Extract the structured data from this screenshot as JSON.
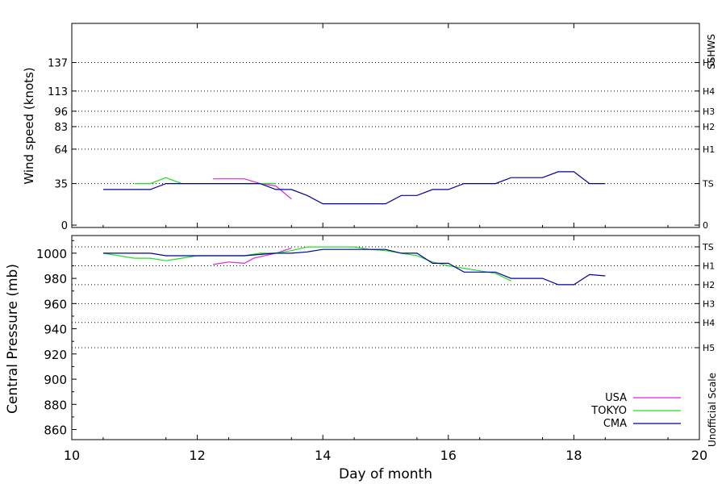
{
  "chart_data": [
    {
      "type": "line",
      "xlabel": "",
      "ylabel": "Wind speed (knots)",
      "right_label": "SSHWS",
      "xlim": [
        10,
        20
      ],
      "ylim": [
        -2,
        170
      ],
      "y_ticks": [
        {
          "value": 0,
          "label": "0",
          "right": "0"
        },
        {
          "value": 35,
          "label": "35",
          "right": "TS"
        },
        {
          "value": 64,
          "label": "64",
          "right": "H1"
        },
        {
          "value": 83,
          "label": "83",
          "right": "H2"
        },
        {
          "value": 96,
          "label": "96",
          "right": "H3"
        },
        {
          "value": 113,
          "label": "113",
          "right": "H4"
        },
        {
          "value": 137,
          "label": "137",
          "right": "H5"
        }
      ],
      "grid_lines": [
        35,
        64,
        83,
        96,
        113,
        137
      ],
      "series": [
        {
          "name": "USA",
          "color": "#e020e0",
          "x": [
            12.25,
            12.75,
            13.0,
            13.25,
            13.5
          ],
          "y": [
            39,
            39,
            35,
            33,
            22
          ]
        },
        {
          "name": "TOKYO",
          "color": "#20e020",
          "x": [
            11.0,
            11.25,
            11.5,
            11.75,
            12.0,
            12.5,
            13.0,
            13.25
          ],
          "y": [
            35,
            35,
            40,
            35,
            35,
            35,
            35,
            35
          ]
        },
        {
          "name": "CMA",
          "color": "#0000a0",
          "x": [
            10.5,
            11.25,
            11.5,
            12.0,
            13.0,
            13.25,
            13.5,
            13.75,
            14.0,
            14.5,
            15.0,
            15.25,
            15.5,
            15.75,
            16.0,
            16.25,
            16.5,
            16.75,
            17.0,
            17.25,
            17.5,
            17.75,
            18.0,
            18.25,
            18.5
          ],
          "y": [
            30,
            30,
            35,
            35,
            35,
            30,
            30,
            25,
            18,
            18,
            18,
            25,
            25,
            30,
            30,
            35,
            35,
            35,
            40,
            40,
            40,
            45,
            45,
            35,
            35
          ]
        }
      ]
    },
    {
      "type": "line",
      "xlabel": "Day of month",
      "ylabel": "Central Pressure (mb)",
      "right_label": "Unofficial Scale",
      "xlim": [
        10,
        20
      ],
      "ylim": [
        852,
        1014
      ],
      "x_ticks": [
        10,
        12,
        14,
        16,
        18,
        20
      ],
      "y_ticks": [
        860,
        880,
        900,
        920,
        940,
        960,
        980,
        1000
      ],
      "scale_lines": [
        {
          "value": 1005,
          "label": "TS"
        },
        {
          "value": 990,
          "label": "H1"
        },
        {
          "value": 975,
          "label": "H2"
        },
        {
          "value": 960,
          "label": "H3"
        },
        {
          "value": 945,
          "label": "H4"
        },
        {
          "value": 925,
          "label": "H5"
        }
      ],
      "series": [
        {
          "name": "USA",
          "color": "#e020e0",
          "x": [
            12.25,
            12.5,
            12.75,
            12.9,
            13.25,
            13.5
          ],
          "y": [
            991,
            993,
            992,
            996,
            1000,
            1004
          ]
        },
        {
          "name": "TOKYO",
          "color": "#20e020",
          "x": [
            10.5,
            10.75,
            11.0,
            11.25,
            11.5,
            11.75,
            12.0,
            12.5,
            12.75,
            13.0,
            13.25,
            13.5,
            13.75,
            14.0,
            14.5,
            14.75,
            15.0,
            15.25,
            15.5,
            15.75,
            16.0,
            16.25,
            16.5,
            16.75,
            17.0
          ],
          "y": [
            1000,
            998,
            996,
            996,
            994,
            996,
            998,
            998,
            998,
            1000,
            1000,
            1002,
            1005,
            1005,
            1005,
            1003,
            1002,
            1000,
            998,
            993,
            990,
            988,
            986,
            984,
            978
          ]
        },
        {
          "name": "CMA",
          "color": "#0000a0",
          "x": [
            10.5,
            11.25,
            11.5,
            12.0,
            12.75,
            13.0,
            13.25,
            13.5,
            13.75,
            14.0,
            14.5,
            15.0,
            15.25,
            15.5,
            15.75,
            16.0,
            16.25,
            16.5,
            16.75,
            17.0,
            17.25,
            17.5,
            17.75,
            18.0,
            18.25,
            18.5
          ],
          "y": [
            1000,
            1000,
            998,
            998,
            998,
            999,
            1000,
            1000,
            1001,
            1003,
            1003,
            1003,
            1000,
            1000,
            992,
            992,
            985,
            985,
            985,
            980,
            980,
            980,
            975,
            975,
            983,
            982
          ]
        }
      ]
    }
  ]
}
